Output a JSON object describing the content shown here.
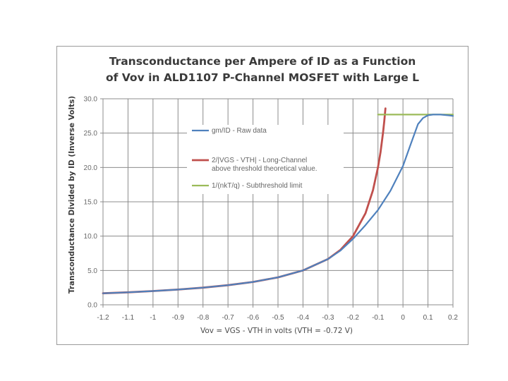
{
  "chart_data": {
    "type": "line",
    "title": [
      "Transconductance per Ampere of ID as a Function",
      "of Vov in ALD1107 P-Channel MOSFET with Large L"
    ],
    "xlabel": "Vov = VGS - VTH in volts (VTH = -0.72 V)",
    "ylabel": "Transconductance Divided by ID (Inverse Volts)",
    "xlim": [
      -1.2,
      0.2
    ],
    "ylim": [
      0,
      30
    ],
    "grid": true,
    "legend_position": "inside-center",
    "x_ticks": [
      "-1.2",
      "-1.1",
      "-1",
      "-0.9",
      "-0.8",
      "-0.7",
      "-0.6",
      "-0.5",
      "-0.4",
      "-0.3",
      "-0.2",
      "-0.1",
      "0",
      "0.1",
      "0.2"
    ],
    "y_ticks": [
      "0.0",
      "5.0",
      "10.0",
      "15.0",
      "20.0",
      "25.0",
      "30.0"
    ],
    "series": [
      {
        "name": "gm/ID - Raw data",
        "color": "#4f81bd",
        "x": [
          -1.2,
          -1.1,
          -1.0,
          -0.9,
          -0.8,
          -0.7,
          -0.6,
          -0.5,
          -0.4,
          -0.3,
          -0.25,
          -0.2,
          -0.15,
          -0.1,
          -0.05,
          0.0,
          0.03,
          0.06,
          0.08,
          0.1,
          0.12,
          0.15,
          0.18,
          0.2
        ],
        "y": [
          1.67,
          1.82,
          2.0,
          2.22,
          2.5,
          2.86,
          3.33,
          4.0,
          5.0,
          6.67,
          7.9,
          9.6,
          11.6,
          13.8,
          16.6,
          20.2,
          23.3,
          26.3,
          27.2,
          27.6,
          27.7,
          27.7,
          27.6,
          27.5
        ]
      },
      {
        "name": "2/|VGS - VTH| - Long-Channel above threshold theoretical value.",
        "color": "#c0504d",
        "x": [
          -1.2,
          -1.1,
          -1.0,
          -0.9,
          -0.8,
          -0.7,
          -0.6,
          -0.5,
          -0.4,
          -0.3,
          -0.25,
          -0.2,
          -0.15,
          -0.12,
          -0.1,
          -0.09,
          -0.08,
          -0.075,
          -0.07
        ],
        "y": [
          1.67,
          1.82,
          2.0,
          2.22,
          2.5,
          2.86,
          3.33,
          4.0,
          5.0,
          6.67,
          8.0,
          10.0,
          13.33,
          16.67,
          20.0,
          22.2,
          25.0,
          26.7,
          28.6
        ]
      },
      {
        "name": "1/(nkT/q) - Subthreshold limit",
        "color": "#9bbb59",
        "x": [
          -0.1,
          0.2
        ],
        "y": [
          27.7,
          27.7
        ]
      }
    ]
  }
}
